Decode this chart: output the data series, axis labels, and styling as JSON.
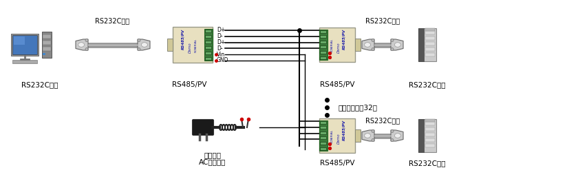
{
  "bg_color": "#ffffff",
  "labels": {
    "rs232c_kiki": "RS232C機器",
    "rs485pv": "RS485/PV",
    "rs232c_chokusetsu": "RS232C直結",
    "max_connections": "最大接続台数32台",
    "ac_adapter_line1": "標準添付",
    "ac_adapter_line2": "ACアダプタ",
    "d_plus": "D+",
    "d_minus": "D-",
    "vin": "Vin",
    "gnd": "GND"
  },
  "device_body_color": "#e8e0c0",
  "device_label_color": "#1a1aaa",
  "terminal_color": "#3a7a3a",
  "wire_color": "#000000",
  "red_dot_color": "#cc0000",
  "text_color": "#000000",
  "cable_color": "#888888",
  "font_size": 7.5
}
